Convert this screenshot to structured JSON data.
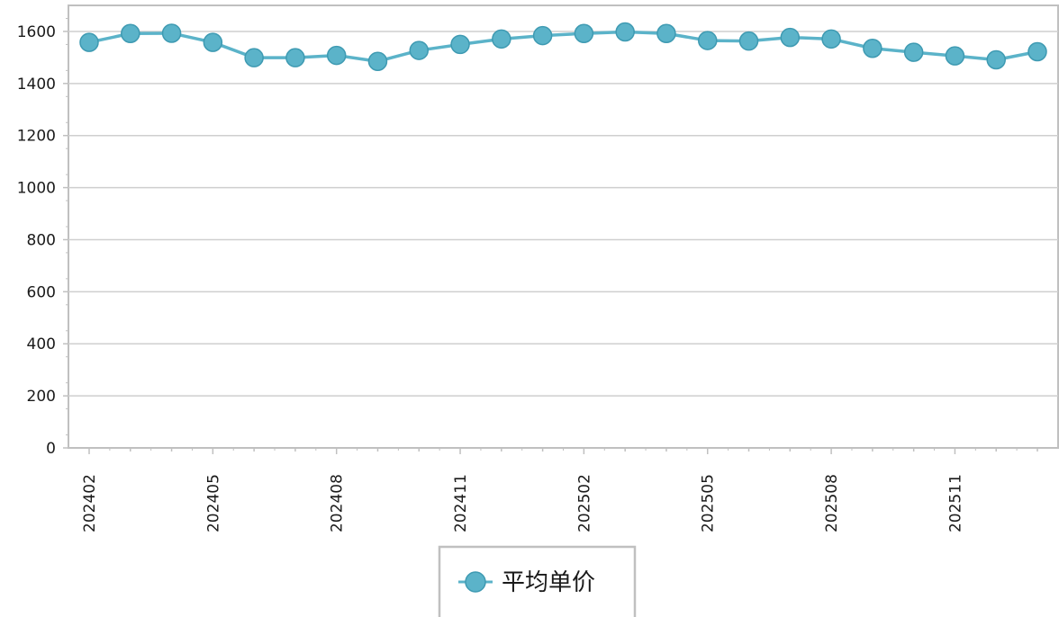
{
  "chart_data": {
    "type": "line",
    "title": "",
    "xlabel": "",
    "ylabel": "",
    "x": [
      "202402",
      "202403",
      "202404",
      "202405",
      "202406",
      "202407",
      "202408",
      "202409",
      "202410",
      "202411",
      "202412",
      "202501",
      "202502",
      "202503",
      "202504",
      "202505",
      "202506",
      "202507",
      "202508",
      "202509",
      "202510",
      "202511",
      "202512",
      "202601"
    ],
    "x_tick_labels": [
      "202402",
      "202405",
      "202408",
      "202411",
      "202502",
      "202505",
      "202508",
      "202511"
    ],
    "y_ticks": [
      "0",
      "200",
      "400",
      "600",
      "800",
      "1000",
      "1200",
      "1400",
      "1600"
    ],
    "ylim": [
      0,
      1700
    ],
    "grid": true,
    "legend_position": "bottom-center",
    "series": [
      {
        "name": "平均单价",
        "values": [
          1558,
          1592,
          1593,
          1558,
          1499,
          1499,
          1508,
          1485,
          1527,
          1550,
          1571,
          1584,
          1592,
          1598,
          1592,
          1565,
          1563,
          1577,
          1571,
          1535,
          1520,
          1506,
          1491,
          1522
        ]
      }
    ],
    "colors": {
      "line": "#5bb3c9",
      "marker_fill": "#5bb3c9",
      "marker_stroke": "#3e9ab2",
      "grid": "#cfcfcf",
      "axis": "#c0c0c0"
    }
  }
}
